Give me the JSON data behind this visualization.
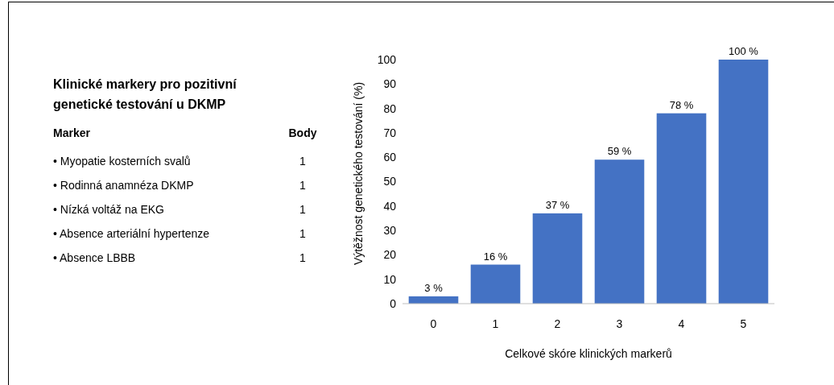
{
  "chart_data": [
    {
      "type": "other",
      "title": "Klinické markery pro pozitivní genetické testování u DKMP",
      "xlabel": "Marker",
      "ylabel": "Body",
      "categories": [
        "• Myopatie kosterních svalů",
        "• Rodinná anamnéza DKMP",
        "• Nízká voltáž na EKG",
        "• Absence arteriální hypertenze",
        "• Absence LBBB"
      ],
      "values": [
        1,
        1,
        1,
        1,
        1
      ],
      "data_labels": true
    },
    {
      "type": "bar",
      "xlabel": "Celkové skóre klinických markerů",
      "ylabel": "Výtěžnost genetického testování (%)",
      "categories": [
        "0",
        "1",
        "2",
        "3",
        "4",
        "5"
      ],
      "values": [
        3,
        16,
        37,
        59,
        78,
        100
      ],
      "value_labels": [
        "3 %",
        "16 %",
        "37 %",
        "59 %",
        "78 %",
        "100 %"
      ],
      "color": "#4472c4",
      "ylim": [
        0,
        100
      ],
      "yticks": [
        0,
        10,
        20,
        30,
        40,
        50,
        60,
        70,
        80,
        90,
        100
      ],
      "grid": false
    }
  ]
}
